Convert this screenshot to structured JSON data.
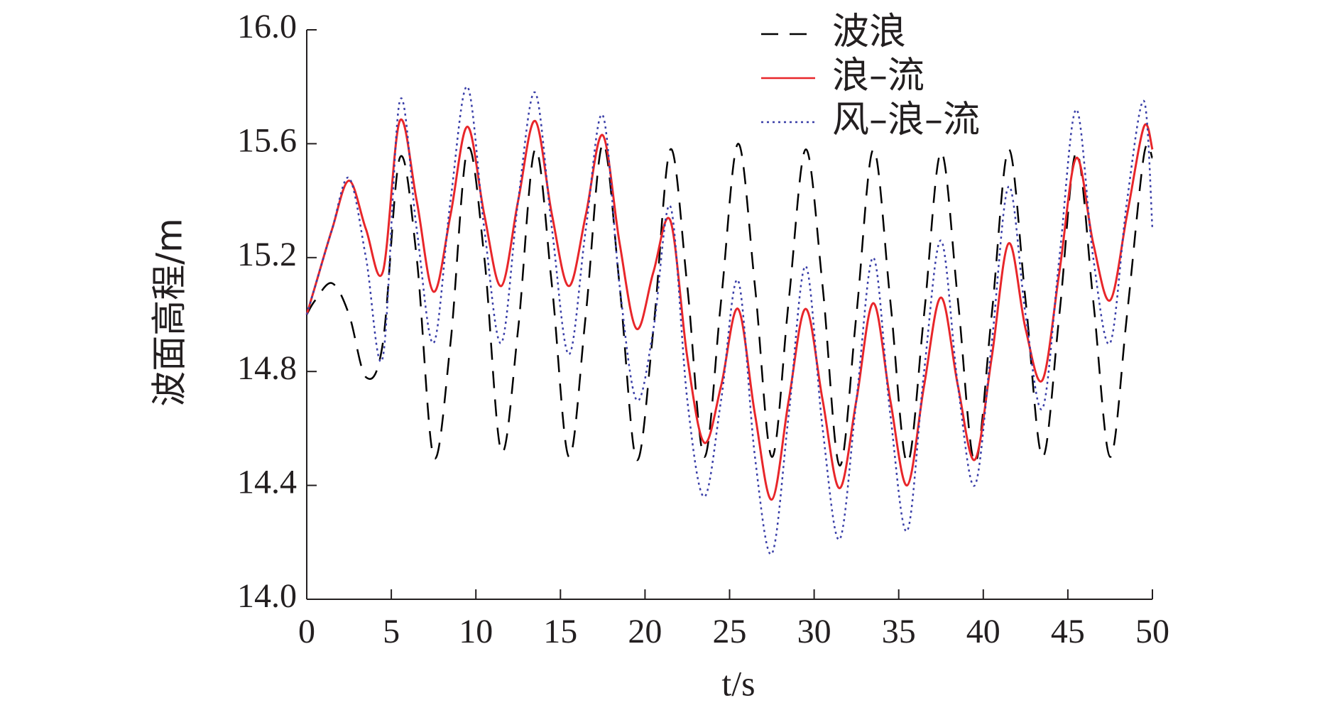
{
  "chart_data": {
    "type": "line",
    "xlabel": "t/s",
    "ylabel": "波面高程/m",
    "x": [
      0,
      0.5,
      1.5,
      2.5,
      3.5,
      4.5,
      5.5,
      6.5,
      7.5,
      8.5,
      9.5,
      10.5,
      11.5,
      12.5,
      13.5,
      14.5,
      15.5,
      16.5,
      17.5,
      18.5,
      19.5,
      20.5,
      21.5,
      22.5,
      23.5,
      24.5,
      25.5,
      26.5,
      27.5,
      28.5,
      29.5,
      30.5,
      31.5,
      32.5,
      33.5,
      34.5,
      35.5,
      36.5,
      37.5,
      38.5,
      39.5,
      40.5,
      41.5,
      42.5,
      43.5,
      44.5,
      45.5,
      46.5,
      47.5,
      48.5,
      49.5,
      50
    ],
    "series": [
      {
        "name": "波浪",
        "color": "#000000",
        "dash": "dashed",
        "values": [
          15.0,
          15.05,
          15.11,
          15.0,
          14.78,
          14.9,
          15.55,
          15.2,
          14.5,
          14.9,
          15.58,
          15.2,
          14.52,
          14.95,
          15.58,
          15.1,
          14.5,
          15.0,
          15.6,
          15.1,
          14.49,
          14.95,
          15.58,
          15.1,
          14.5,
          15.05,
          15.6,
          15.1,
          14.5,
          15.05,
          15.58,
          15.1,
          14.47,
          15.0,
          15.58,
          15.05,
          14.48,
          15.0,
          15.57,
          15.05,
          14.48,
          15.0,
          15.58,
          15.05,
          14.5,
          15.0,
          15.57,
          15.05,
          14.5,
          15.0,
          15.56,
          15.55
        ]
      },
      {
        "name": "浪–流",
        "color": "#e8262a",
        "dash": "solid",
        "values": [
          15.0,
          15.1,
          15.3,
          15.47,
          15.3,
          15.15,
          15.68,
          15.4,
          15.08,
          15.35,
          15.66,
          15.35,
          15.1,
          15.4,
          15.68,
          15.35,
          15.1,
          15.35,
          15.63,
          15.25,
          14.95,
          15.15,
          15.33,
          14.85,
          14.55,
          14.75,
          15.02,
          14.65,
          14.35,
          14.7,
          15.02,
          14.7,
          14.39,
          14.7,
          15.04,
          14.7,
          14.4,
          14.75,
          15.06,
          14.75,
          14.49,
          14.85,
          15.25,
          14.95,
          14.77,
          15.15,
          15.55,
          15.25,
          15.05,
          15.35,
          15.66,
          15.58
        ]
      },
      {
        "name": "风–浪–流",
        "color": "#3a3fa8",
        "dash": "dotted",
        "values": [
          15.0,
          15.1,
          15.3,
          15.48,
          15.2,
          14.85,
          15.75,
          15.3,
          14.9,
          15.4,
          15.8,
          15.3,
          14.9,
          15.4,
          15.78,
          15.3,
          14.86,
          15.3,
          15.7,
          15.1,
          14.7,
          14.95,
          15.38,
          14.7,
          14.36,
          14.7,
          15.12,
          14.5,
          14.16,
          14.65,
          15.17,
          14.6,
          14.21,
          14.7,
          15.2,
          14.65,
          14.24,
          14.8,
          15.26,
          14.75,
          14.4,
          14.9,
          15.45,
          15.0,
          14.67,
          15.2,
          15.72,
          15.2,
          14.9,
          15.4,
          15.75,
          15.3
        ]
      }
    ],
    "xlim": [
      0,
      50
    ],
    "xticks": [
      0,
      5,
      10,
      15,
      20,
      25,
      30,
      35,
      40,
      45,
      50
    ],
    "ylim": [
      14,
      16
    ],
    "yticks": [
      {
        "value": 14,
        "label": "14.0"
      },
      {
        "value": 14.4,
        "label": "14.4"
      },
      {
        "value": 14.8,
        "label": "14.8"
      },
      {
        "value": 15.2,
        "label": "15.2"
      },
      {
        "value": 15.6,
        "label": "15.6"
      },
      {
        "value": 16,
        "label": "16.0"
      }
    ],
    "legend": "upper center",
    "grid": false
  }
}
